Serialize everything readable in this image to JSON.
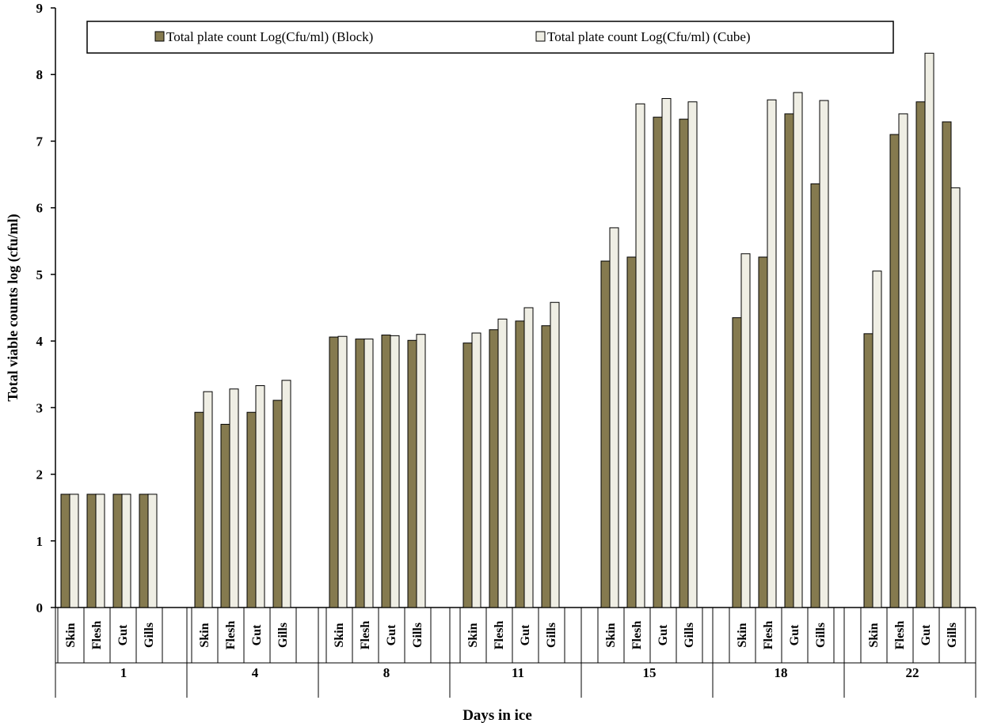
{
  "chart_data": {
    "type": "bar",
    "title": "",
    "xlabel": "Days in ice",
    "ylabel": "Total  viable counts log (cfu/ml)",
    "ylim": [
      0,
      9
    ],
    "yticks": [
      "0",
      "1",
      "2",
      "3",
      "4",
      "5",
      "6",
      "7",
      "8",
      "9"
    ],
    "grid": false,
    "legend_position": "top",
    "groups": [
      "1",
      "4",
      "8",
      "11",
      "15",
      "18",
      "22"
    ],
    "subcategories": [
      "Skin",
      "Flesh",
      "Gut",
      "Gills"
    ],
    "series": [
      {
        "name": "Total plate count  Log(Cfu/ml) (Block)",
        "color": "#857a4f",
        "values": [
          [
            1.7,
            1.7,
            1.7,
            1.7
          ],
          [
            2.93,
            2.75,
            2.93,
            3.11
          ],
          [
            4.06,
            4.03,
            4.09,
            4.01
          ],
          [
            3.97,
            4.17,
            4.3,
            4.23
          ],
          [
            5.2,
            5.26,
            7.36,
            7.33
          ],
          [
            4.35,
            5.26,
            7.41,
            6.36
          ],
          [
            4.11,
            7.1,
            7.59,
            7.29
          ]
        ]
      },
      {
        "name": "Total plate count Log(Cfu/ml) (Cube)",
        "color": "#efeee4",
        "values": [
          [
            1.7,
            1.7,
            1.7,
            1.7
          ],
          [
            3.24,
            3.28,
            3.33,
            3.41
          ],
          [
            4.07,
            4.03,
            4.08,
            4.1
          ],
          [
            4.12,
            4.33,
            4.5,
            4.58
          ],
          [
            5.7,
            7.56,
            7.64,
            7.59
          ],
          [
            5.31,
            7.62,
            7.73,
            7.61
          ],
          [
            5.05,
            7.41,
            8.32,
            6.3
          ]
        ]
      }
    ]
  }
}
